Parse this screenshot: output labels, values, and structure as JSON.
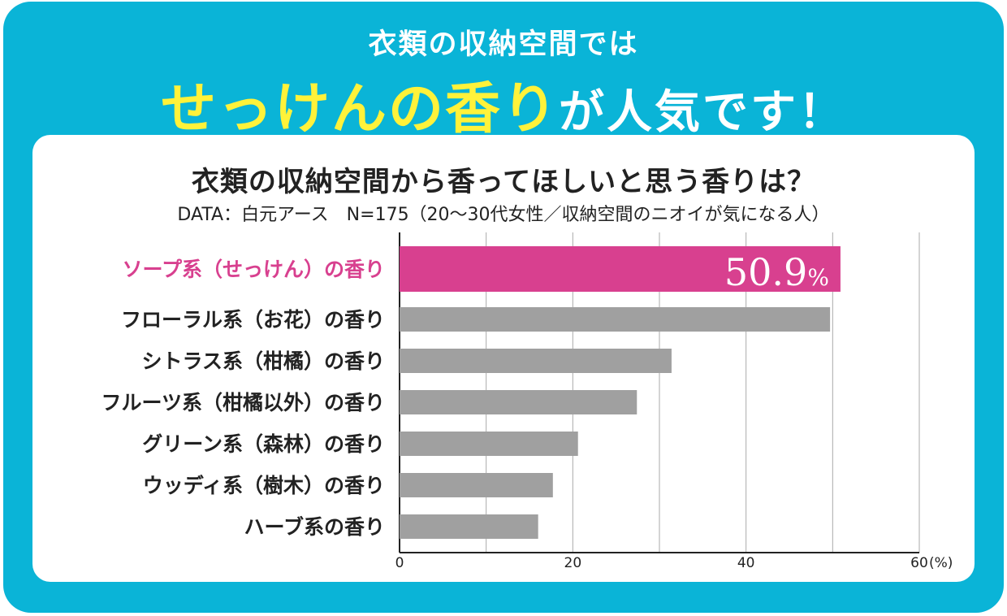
{
  "header": {
    "line1": "衣類の収納空間では",
    "line2_highlight": "せっけんの香り",
    "line2_rest": "が人気です！"
  },
  "chart_data": {
    "type": "bar",
    "orientation": "horizontal",
    "title": "衣類の収納空間から香ってほしいと思う香りは？",
    "source": "DATA：白元アース　N=175（20〜30代女性／収納空間のニオイが気になる人）",
    "categories": [
      "ソープ系（せっけん）の香り",
      "フローラル系（お花）の香り",
      "シトラス系（柑橘）の香り",
      "フルーツ系（柑橘以外）の香り",
      "グリーン系（森林）の香り",
      "ウッディ系（樹木）の香り",
      "ハーブ系の香り"
    ],
    "values": [
      50.9,
      49.7,
      31.4,
      27.4,
      20.6,
      17.7,
      16.0
    ],
    "highlight_index": 0,
    "highlight_label": "50.9",
    "highlight_unit": "%",
    "xlim": [
      0,
      60
    ],
    "xticks": [
      0,
      20,
      40,
      60
    ],
    "xunit": "(%)",
    "grid": true,
    "colors": {
      "highlight": "#d8408f",
      "bar": "#a0a0a0",
      "grid": "#aaaaaa",
      "frame": "#0ab4d7",
      "headline_accent": "#fff23a"
    }
  }
}
